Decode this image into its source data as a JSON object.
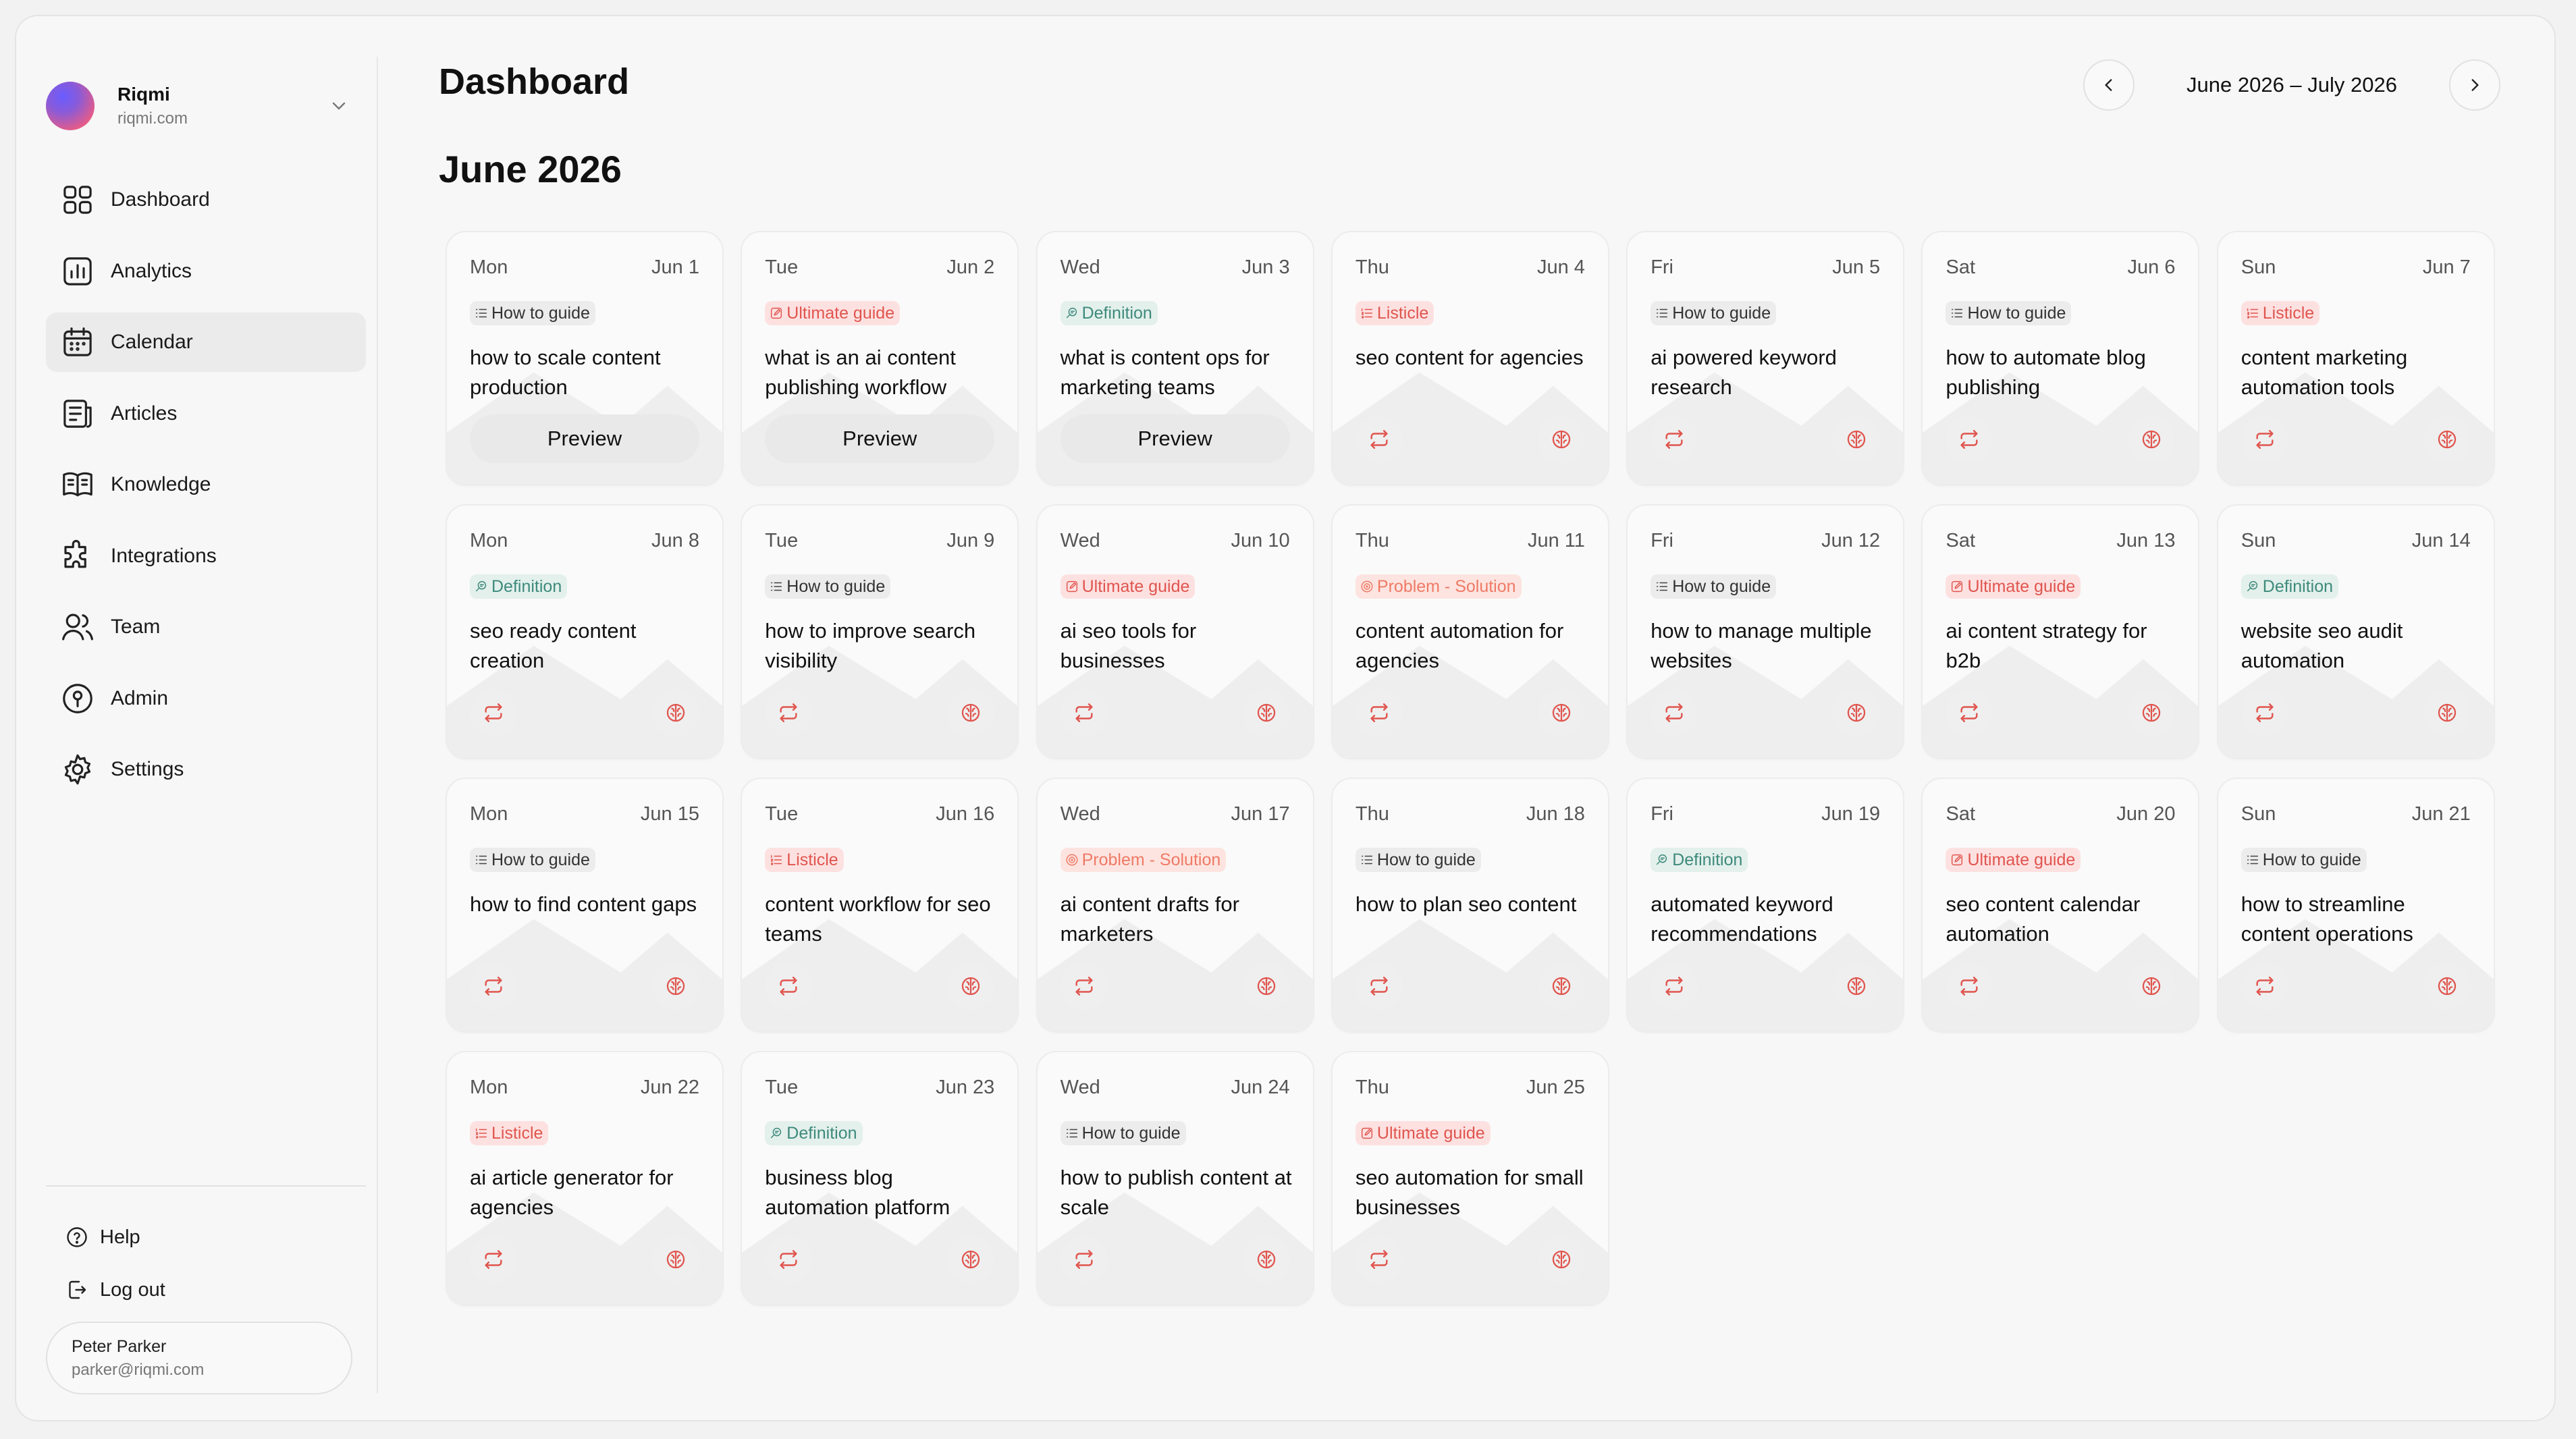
{
  "workspace": {
    "name": "Riqmi",
    "domain": "riqmi.com"
  },
  "nav": [
    {
      "label": "Dashboard",
      "icon": "dashboard-icon"
    },
    {
      "label": "Analytics",
      "icon": "analytics-icon"
    },
    {
      "label": "Calendar",
      "icon": "calendar-icon",
      "active": true
    },
    {
      "label": "Articles",
      "icon": "articles-icon"
    },
    {
      "label": "Knowledge",
      "icon": "knowledge-icon"
    },
    {
      "label": "Integrations",
      "icon": "puzzle-icon"
    },
    {
      "label": "Team",
      "icon": "team-icon"
    },
    {
      "label": "Admin",
      "icon": "admin-icon"
    },
    {
      "label": "Settings",
      "icon": "settings-icon"
    }
  ],
  "bottom": {
    "help": "Help",
    "logout": "Log out"
  },
  "user": {
    "name": "Peter Parker",
    "email": "parker@riqmi.com"
  },
  "header": {
    "title": "Dashboard",
    "month": "June 2026",
    "range": "June 2026 – July 2026"
  },
  "colors": {
    "accent": "#e0554e",
    "definition": "#3e8a7b"
  },
  "preview_label": "Preview",
  "days": [
    {
      "dow": "Mon",
      "date": "Jun 1",
      "tag": "How to guide",
      "kind": "how",
      "title": "how to scale content production",
      "preview": true
    },
    {
      "dow": "Tue",
      "date": "Jun 2",
      "tag": "Ultimate guide",
      "kind": "ult",
      "title": "what is an ai content publishing workflow",
      "preview": true
    },
    {
      "dow": "Wed",
      "date": "Jun 3",
      "tag": "Definition",
      "kind": "def",
      "title": "what is content ops for marketing teams",
      "preview": true
    },
    {
      "dow": "Thu",
      "date": "Jun 4",
      "tag": "Listicle",
      "kind": "lis",
      "title": "seo content for agencies",
      "preview": false
    },
    {
      "dow": "Fri",
      "date": "Jun 5",
      "tag": "How to guide",
      "kind": "how",
      "title": "ai powered keyword research",
      "preview": false
    },
    {
      "dow": "Sat",
      "date": "Jun 6",
      "tag": "How to guide",
      "kind": "how",
      "title": "how to automate blog publishing",
      "preview": false
    },
    {
      "dow": "Sun",
      "date": "Jun 7",
      "tag": "Listicle",
      "kind": "lis",
      "title": "content marketing automation tools",
      "preview": false
    },
    {
      "dow": "Mon",
      "date": "Jun 8",
      "tag": "Definition",
      "kind": "def",
      "title": "seo ready content creation",
      "preview": false
    },
    {
      "dow": "Tue",
      "date": "Jun 9",
      "tag": "How to guide",
      "kind": "how",
      "title": "how to improve search visibility",
      "preview": false
    },
    {
      "dow": "Wed",
      "date": "Jun 10",
      "tag": "Ultimate guide",
      "kind": "ult",
      "title": "ai seo tools for businesses",
      "preview": false
    },
    {
      "dow": "Thu",
      "date": "Jun 11",
      "tag": "Problem - Solution",
      "kind": "pro",
      "title": "content automation for agencies",
      "preview": false
    },
    {
      "dow": "Fri",
      "date": "Jun 12",
      "tag": "How to guide",
      "kind": "how",
      "title": "how to manage multiple websites",
      "preview": false
    },
    {
      "dow": "Sat",
      "date": "Jun 13",
      "tag": "Ultimate guide",
      "kind": "ult",
      "title": "ai content strategy for b2b",
      "preview": false
    },
    {
      "dow": "Sun",
      "date": "Jun 14",
      "tag": "Definition",
      "kind": "def",
      "title": "website seo audit automation",
      "preview": false
    },
    {
      "dow": "Mon",
      "date": "Jun 15",
      "tag": "How to guide",
      "kind": "how",
      "title": "how to find content gaps",
      "preview": false
    },
    {
      "dow": "Tue",
      "date": "Jun 16",
      "tag": "Listicle",
      "kind": "lis",
      "title": "content workflow for seo teams",
      "preview": false
    },
    {
      "dow": "Wed",
      "date": "Jun 17",
      "tag": "Problem - Solution",
      "kind": "pro",
      "title": "ai content drafts for marketers",
      "preview": false
    },
    {
      "dow": "Thu",
      "date": "Jun 18",
      "tag": "How to guide",
      "kind": "how",
      "title": "how to plan seo content",
      "preview": false
    },
    {
      "dow": "Fri",
      "date": "Jun 19",
      "tag": "Definition",
      "kind": "def",
      "title": "automated keyword recommendations",
      "preview": false
    },
    {
      "dow": "Sat",
      "date": "Jun 20",
      "tag": "Ultimate guide",
      "kind": "ult",
      "title": "seo content calendar automation",
      "preview": false
    },
    {
      "dow": "Sun",
      "date": "Jun 21",
      "tag": "How to guide",
      "kind": "how",
      "title": "how to streamline content operations",
      "preview": false
    },
    {
      "dow": "Mon",
      "date": "Jun 22",
      "tag": "Listicle",
      "kind": "lis",
      "title": "ai article generator for agencies",
      "preview": false
    },
    {
      "dow": "Tue",
      "date": "Jun 23",
      "tag": "Definition",
      "kind": "def",
      "title": "business blog automation platform",
      "preview": false
    },
    {
      "dow": "Wed",
      "date": "Jun 24",
      "tag": "How to guide",
      "kind": "how",
      "title": "how to publish content at scale",
      "preview": false
    },
    {
      "dow": "Thu",
      "date": "Jun 25",
      "tag": "Ultimate guide",
      "kind": "ult",
      "title": "seo automation for small businesses",
      "preview": false
    }
  ]
}
